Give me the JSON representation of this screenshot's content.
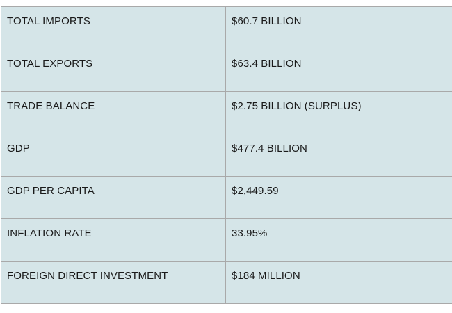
{
  "table": {
    "rows": [
      {
        "label": "TOTAL IMPORTS",
        "value": "$60.7 BILLION"
      },
      {
        "label": "TOTAL EXPORTS",
        "value": "$63.4 BILLION"
      },
      {
        "label": "TRADE BALANCE",
        "value": "$2.75 BILLION (SURPLUS)"
      },
      {
        "label": "GDP",
        "value": "$477.4 BILLION"
      },
      {
        "label": "GDP PER CAPITA",
        "value": "$2,449.59"
      },
      {
        "label": "INFLATION RATE",
        "value": "33.95%"
      },
      {
        "label": "FOREIGN DIRECT INVESTMENT",
        "value": "$184 MILLION"
      }
    ]
  },
  "colors": {
    "cell_background": "#d5e5e8",
    "border": "#a9a9a9",
    "text": "#1a1a1a"
  }
}
